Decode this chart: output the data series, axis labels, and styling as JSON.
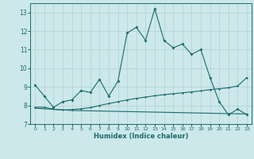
{
  "xlabel": "Humidex (Indice chaleur)",
  "xlim": [
    -0.5,
    23.5
  ],
  "ylim": [
    7,
    13.5
  ],
  "yticks": [
    7,
    8,
    9,
    10,
    11,
    12,
    13
  ],
  "bg_color": "#cce8ea",
  "grid_color": "#b0d0d4",
  "line_color": "#1a6b6b",
  "line1_x": [
    0,
    1,
    2,
    3,
    4,
    5,
    6,
    7,
    8,
    9,
    10,
    11,
    12,
    13,
    14,
    15,
    16,
    17,
    18,
    19,
    20,
    21,
    22,
    23
  ],
  "line1_y": [
    9.1,
    8.5,
    7.9,
    8.2,
    8.3,
    8.8,
    8.7,
    9.4,
    8.5,
    9.3,
    11.9,
    12.2,
    11.5,
    13.2,
    11.5,
    11.1,
    11.3,
    10.75,
    11.0,
    9.5,
    8.2,
    7.5,
    7.8,
    7.5
  ],
  "line2_x": [
    0,
    1,
    2,
    3,
    4,
    5,
    6,
    7,
    8,
    9,
    10,
    11,
    12,
    13,
    14,
    15,
    16,
    17,
    18,
    19,
    20,
    21,
    22,
    23
  ],
  "line2_y": [
    7.9,
    7.9,
    7.8,
    7.75,
    7.78,
    7.82,
    7.88,
    8.0,
    8.1,
    8.2,
    8.3,
    8.38,
    8.45,
    8.52,
    8.58,
    8.63,
    8.68,
    8.73,
    8.78,
    8.85,
    8.9,
    8.95,
    9.05,
    9.5
  ],
  "line3_x": [
    0,
    1,
    2,
    3,
    4,
    5,
    6,
    7,
    8,
    9,
    10,
    11,
    12,
    13,
    14,
    15,
    16,
    17,
    18,
    19,
    20,
    21,
    22,
    23
  ],
  "line3_y": [
    7.85,
    7.82,
    7.79,
    7.76,
    7.73,
    7.72,
    7.71,
    7.7,
    7.69,
    7.68,
    7.67,
    7.66,
    7.65,
    7.64,
    7.63,
    7.62,
    7.61,
    7.6,
    7.59,
    7.58,
    7.57,
    7.56,
    7.55,
    7.54
  ]
}
